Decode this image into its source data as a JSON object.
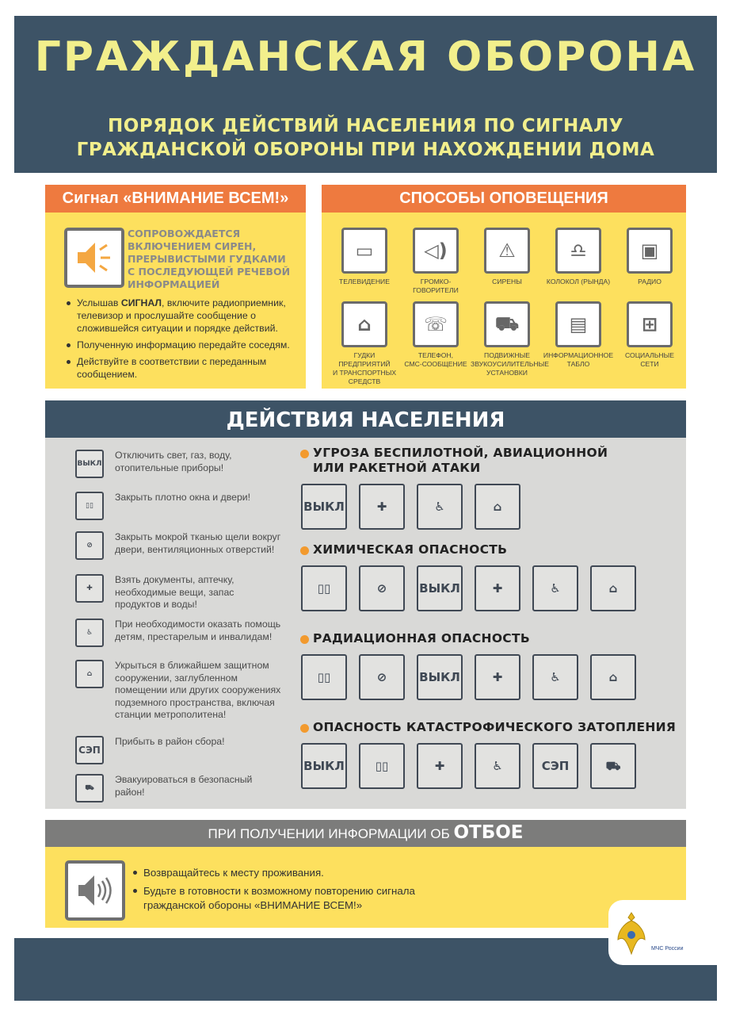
{
  "header": {
    "title": "ГРАЖДАНСКАЯ ОБОРОНА",
    "subtitle_lines": [
      "ПОРЯДОК ДЕЙСТВИЙ НАСЕЛЕНИЯ ПО СИГНАЛУ",
      "ГРАЖДАНСКОЙ ОБОРОНЫ ПРИ НАХОЖДЕНИИ ДОМА"
    ]
  },
  "signal": {
    "title": "Сигнал  «ВНИМАНИЕ ВСЕМ!»",
    "accompanied_lines": [
      "СОПРОВОЖДАЕТСЯ",
      "ВКЛЮЧЕНИЕМ СИРЕН,",
      "ПРЕРЫВИСТЫМИ ГУДКАМИ",
      "С ПОСЛЕДУЮЩЕЙ РЕЧЕВОЙ",
      "ИНФОРМАЦИЕЙ"
    ],
    "bullet1_pre": "Услышав ",
    "bullet1_bold": "СИГНАЛ",
    "bullet1_post": ", включите радиоприемник, телевизор и прослушайте сообщение о сложившейся ситуации и порядке действий.",
    "bullet2": "Полученную информацию передайте соседям.",
    "bullet3": "Действуйте в соответствии с переданным сообщением."
  },
  "notification": {
    "title": "СПОСОБЫ ОПОВЕЩЕНИЯ",
    "items": [
      {
        "label": "ТЕЛЕВИДЕНИЕ",
        "icon": "tv-icon",
        "glyph": "▭"
      },
      {
        "label": "ГРОМКО-\nГОВОРИТЕЛИ",
        "icon": "loudspeaker-icon",
        "glyph": "◁)"
      },
      {
        "label": "СИРЕНЫ",
        "icon": "siren-icon",
        "glyph": "⚠"
      },
      {
        "label": "КОЛОКОЛ (РЫНДА)",
        "icon": "bell-icon",
        "glyph": "♎"
      },
      {
        "label": "РАДИО",
        "icon": "radio-icon",
        "glyph": "▣"
      },
      {
        "label": "ГУДКИ ПРЕДПРИЯТИЙ\nИ ТРАНСПОРТНЫХ\nСРЕДСТВ",
        "icon": "factory-icon",
        "glyph": "⌂"
      },
      {
        "label": "ТЕЛЕФОН,\nСМС-СООБЩЕНИЕ",
        "icon": "phone-icon",
        "glyph": "☏"
      },
      {
        "label": "ПОДВИЖНЫЕ\nЗВУКОУСИЛИТЕЛЬНЫЕ\nУСТАНОВКИ",
        "icon": "loudspeaker-truck-icon",
        "glyph": "⛟"
      },
      {
        "label": "ИНФОРМАЦИОННОЕ\nТАБЛО",
        "icon": "info-board-icon",
        "glyph": "▤"
      },
      {
        "label": "СОЦИАЛЬНЫЕ\nСЕТИ",
        "icon": "social-networks-icon",
        "glyph": "⊞"
      }
    ]
  },
  "actions": {
    "title": "ДЕЙСТВИЯ НАСЕЛЕНИЯ",
    "items": [
      {
        "text": "Отключить свет, газ, воду, отопительные приборы!",
        "icon": "switch-off-icon",
        "icon_label": "ВЫКЛ"
      },
      {
        "text": "Закрыть плотно окна и двери!",
        "icon": "close-windows-doors-icon",
        "icon_label": "▯▯"
      },
      {
        "text": "Закрыть мокрой тканью щели вокруг двери, вентиляционных отверстий!",
        "icon": "seal-gaps-icon",
        "icon_label": "⊘"
      },
      {
        "text": "Взять документы, аптечку, необходимые вещи, запас продуктов и воды!",
        "icon": "supplies-icon",
        "icon_label": "✚"
      },
      {
        "text": "При необходимости оказать помощь детям, престарелым и инвалидам!",
        "icon": "help-people-icon",
        "icon_label": "♿"
      },
      {
        "text": "Укрыться в ближайшем защитном сооружении, заглубленном помещении или других сооружениях подземного пространства, включая станции метрополитена!",
        "icon": "shelter-icon",
        "icon_label": "⌂"
      },
      {
        "text": "Прибыть в район сбора!",
        "icon": "assembly-point-icon",
        "icon_label": "СЭП"
      },
      {
        "text": "Эвакуироваться в безопасный район!",
        "icon": "evacuation-icon",
        "icon_label": "⛟"
      }
    ],
    "scenarios": [
      {
        "title": "УГРОЗА БЕСПИЛОТНОЙ, АВИАЦИОННОЙ\nИЛИ РАКЕТНОЙ АТАКИ",
        "icons": [
          0,
          3,
          4,
          5
        ]
      },
      {
        "title": "ХИМИЧЕСКАЯ ОПАСНОСТЬ",
        "icons": [
          1,
          2,
          0,
          3,
          4,
          5
        ]
      },
      {
        "title": "РАДИАЦИОННАЯ ОПАСНОСТЬ",
        "icons": [
          1,
          2,
          0,
          3,
          4,
          5
        ]
      },
      {
        "title": "ОПАСНОСТЬ КАТАСТРОФИЧЕСКОГО ЗАТОПЛЕНИЯ",
        "icons": [
          0,
          1,
          3,
          4,
          6,
          7
        ]
      }
    ]
  },
  "all_clear": {
    "title_pre": "ПРИ ПОЛУЧЕНИИ ИНФОРМАЦИИ ОБ ",
    "title_bold": "ОТБОЕ",
    "bullets": [
      "Возвращайтесь к месту проживания.",
      "Будьте в готовности к возможному повторению сигнала гражданской обороны «ВНИМАНИЕ ВСЕМ!»"
    ]
  },
  "logo": {
    "text": "МЧС России"
  },
  "colors": {
    "navy": "#3d5366",
    "orange": "#ee7a3f",
    "yellow": "#fde05e",
    "gray": "#d9d9d7",
    "title_yellow": "#f2ef8c"
  }
}
